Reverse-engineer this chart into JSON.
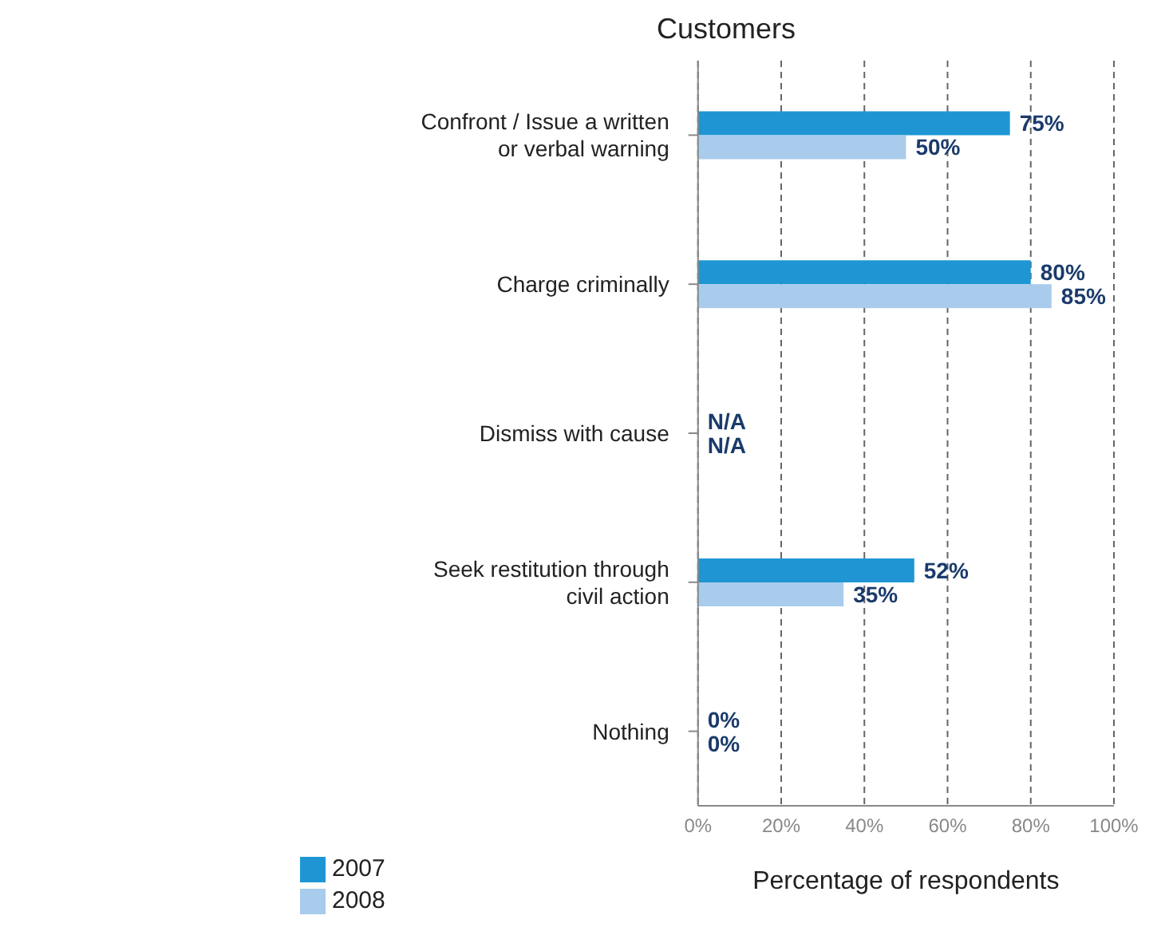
{
  "chart_data": {
    "type": "bar",
    "orientation": "horizontal",
    "title": "Customers",
    "xlabel": "Percentage of respondents",
    "categories": [
      "Confront / Issue a written or verbal warning",
      "Charge criminally",
      "Dismiss with cause",
      "Seek restitution through civil action",
      "Nothing"
    ],
    "series": [
      {
        "name": "2007",
        "color": "#1f96d3",
        "values": [
          75,
          80,
          null,
          52,
          0
        ],
        "value_labels": [
          "75%",
          "80%",
          "N/A",
          "52%",
          "0%"
        ]
      },
      {
        "name": "2008",
        "color": "#a9cbec",
        "values": [
          50,
          85,
          null,
          35,
          0
        ],
        "value_labels": [
          "50%",
          "85%",
          "N/A",
          "35%",
          "0%"
        ]
      }
    ],
    "xlim": [
      0,
      100
    ],
    "xticks": [
      {
        "value": 0,
        "label": "0%"
      },
      {
        "value": 20,
        "label": "20%"
      },
      {
        "value": 40,
        "label": "40%"
      },
      {
        "value": 60,
        "label": "60%"
      },
      {
        "value": 80,
        "label": "80%"
      },
      {
        "value": 100,
        "label": "100%"
      }
    ],
    "grid": "x",
    "legend": "bottom left"
  }
}
